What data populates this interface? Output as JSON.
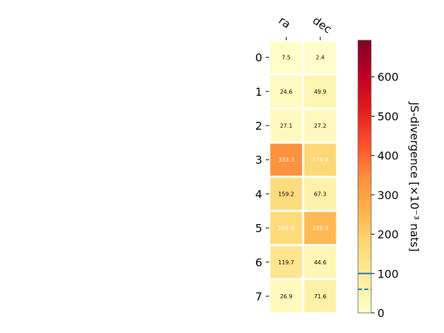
{
  "chart_data": {
    "type": "heatmap",
    "columns": [
      "ra",
      "dec"
    ],
    "rows": [
      "0",
      "1",
      "2",
      "3",
      "4",
      "5",
      "6",
      "7"
    ],
    "values": [
      [
        7.5,
        2.4
      ],
      [
        24.6,
        49.9
      ],
      [
        27.1,
        27.2
      ],
      [
        333.3,
        174.8
      ],
      [
        159.2,
        67.3
      ],
      [
        168.8,
        245.3
      ],
      [
        119.7,
        44.6
      ],
      [
        26.9,
        71.6
      ]
    ],
    "value_labels": [
      [
        "7.5",
        "2.4"
      ],
      [
        "24.6",
        "49.9"
      ],
      [
        "27.1",
        "27.2"
      ],
      [
        "333.3",
        "174.8"
      ],
      [
        "159.2",
        "67.3"
      ],
      [
        "168.8",
        "245.3"
      ],
      [
        "119.7",
        "44.6"
      ],
      [
        "26.9",
        "71.6"
      ]
    ],
    "colorbar": {
      "label": "JS-divergence [×10⁻³ nats]",
      "min": 0,
      "max": 693,
      "ticks": [
        "0",
        "100",
        "200",
        "300",
        "400",
        "500",
        "600"
      ],
      "tick_values": [
        0,
        100,
        200,
        300,
        400,
        500,
        600
      ],
      "colormap": "YlOrRd",
      "solid_marker_value": 100,
      "dashed_marker_value": 60,
      "marker_color": "#1f77b4"
    },
    "grid": false,
    "legend": "none"
  }
}
